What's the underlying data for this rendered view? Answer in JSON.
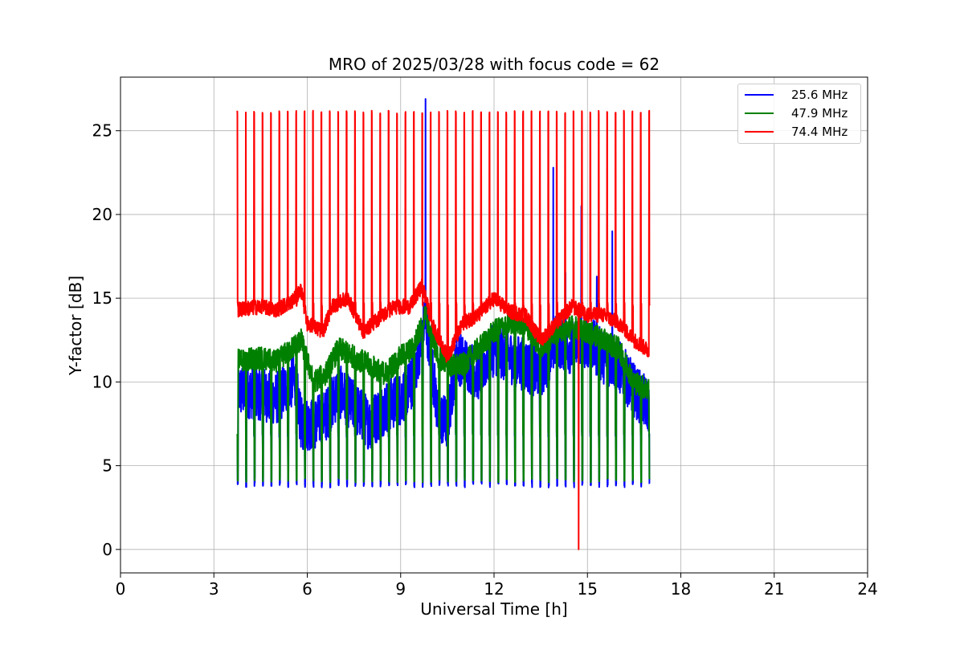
{
  "chart_data": {
    "type": "line",
    "title": "MRO of 2025/03/28 with focus code = 62",
    "xlabel": "Universal Time [h]",
    "ylabel": "Y-factor [dB]",
    "xlim": [
      0,
      24
    ],
    "ylim": [
      -1.4,
      28.2
    ],
    "xticks": [
      0,
      3,
      6,
      9,
      12,
      15,
      18,
      21,
      24
    ],
    "yticks": [
      0,
      5,
      10,
      15,
      20,
      25
    ],
    "grid": true,
    "legend_position": "top-right",
    "x_start": 3.75,
    "x_end": 17.0,
    "pulse_period_h": 0.27,
    "series": [
      {
        "name": "25.6 MHz",
        "color": "#0000ff",
        "pulse_low": 3.7,
        "pulse_high": 6.9,
        "baseline": [
          [
            3.75,
            9.5
          ],
          [
            4.5,
            9.3
          ],
          [
            5.0,
            9.0
          ],
          [
            5.6,
            10.2
          ],
          [
            5.8,
            7.5
          ],
          [
            6.2,
            7.5
          ],
          [
            6.6,
            8.0
          ],
          [
            7.0,
            9.5
          ],
          [
            7.5,
            8.5
          ],
          [
            8.0,
            7.5
          ],
          [
            8.5,
            8.5
          ],
          [
            9.0,
            9.0
          ],
          [
            9.4,
            10.0
          ],
          [
            9.8,
            14.0
          ],
          [
            10.2,
            8.0
          ],
          [
            10.5,
            7.5
          ],
          [
            10.8,
            11.5
          ],
          [
            11.5,
            10.5
          ],
          [
            12.0,
            12.0
          ],
          [
            12.5,
            11.5
          ],
          [
            13.0,
            11.0
          ],
          [
            13.5,
            10.5
          ],
          [
            14.0,
            12.5
          ],
          [
            14.5,
            12.0
          ],
          [
            15.0,
            12.5
          ],
          [
            15.5,
            11.5
          ],
          [
            16.0,
            11.0
          ],
          [
            16.5,
            9.5
          ],
          [
            17.0,
            8.5
          ]
        ],
        "spikes": [
          [
            9.8,
            26.9
          ],
          [
            13.9,
            22.8
          ],
          [
            14.8,
            20.5
          ],
          [
            15.8,
            19.0
          ],
          [
            14.3,
            16.5
          ],
          [
            15.3,
            16.3
          ]
        ]
      },
      {
        "name": "47.9 MHz",
        "color": "#008000",
        "pulse_low": 4.0,
        "pulse_high": 7.0,
        "baseline": [
          [
            3.75,
            11.3
          ],
          [
            4.5,
            11.4
          ],
          [
            5.0,
            11.2
          ],
          [
            5.5,
            12.0
          ],
          [
            5.8,
            12.5
          ],
          [
            6.2,
            10.0
          ],
          [
            6.6,
            10.5
          ],
          [
            7.0,
            12.0
          ],
          [
            7.5,
            11.5
          ],
          [
            8.0,
            11.0
          ],
          [
            8.5,
            10.5
          ],
          [
            9.0,
            11.5
          ],
          [
            9.4,
            12.0
          ],
          [
            9.8,
            14.0
          ],
          [
            10.2,
            11.5
          ],
          [
            10.6,
            11.0
          ],
          [
            11.0,
            11.0
          ],
          [
            11.5,
            12.0
          ],
          [
            12.0,
            13.0
          ],
          [
            12.5,
            13.5
          ],
          [
            13.0,
            13.5
          ],
          [
            13.5,
            12.0
          ],
          [
            14.0,
            13.0
          ],
          [
            14.5,
            13.3
          ],
          [
            15.0,
            13.0
          ],
          [
            15.5,
            12.5
          ],
          [
            16.0,
            12.0
          ],
          [
            16.5,
            10.0
          ],
          [
            17.0,
            9.5
          ]
        ],
        "spikes": []
      },
      {
        "name": "74.4 MHz",
        "color": "#ff0000",
        "pulse_low": 14.5,
        "pulse_high": 26.2,
        "baseline": [
          [
            3.75,
            14.3
          ],
          [
            4.5,
            14.5
          ],
          [
            5.0,
            14.3
          ],
          [
            5.5,
            14.8
          ],
          [
            5.8,
            15.5
          ],
          [
            6.0,
            13.5
          ],
          [
            6.5,
            13.0
          ],
          [
            6.8,
            14.5
          ],
          [
            7.3,
            15.0
          ],
          [
            7.8,
            13.0
          ],
          [
            8.3,
            13.8
          ],
          [
            8.8,
            14.5
          ],
          [
            9.3,
            14.5
          ],
          [
            9.7,
            15.8
          ],
          [
            10.0,
            13.5
          ],
          [
            10.5,
            11.5
          ],
          [
            11.0,
            13.5
          ],
          [
            11.5,
            14.0
          ],
          [
            12.0,
            15.0
          ],
          [
            12.5,
            14.2
          ],
          [
            13.0,
            14.0
          ],
          [
            13.5,
            12.5
          ],
          [
            14.0,
            13.5
          ],
          [
            14.5,
            14.5
          ],
          [
            15.0,
            14.0
          ],
          [
            15.5,
            14.0
          ],
          [
            16.0,
            13.5
          ],
          [
            16.5,
            12.5
          ],
          [
            17.0,
            11.8
          ]
        ],
        "spikes": [
          [
            14.72,
            0.0
          ]
        ]
      }
    ]
  }
}
